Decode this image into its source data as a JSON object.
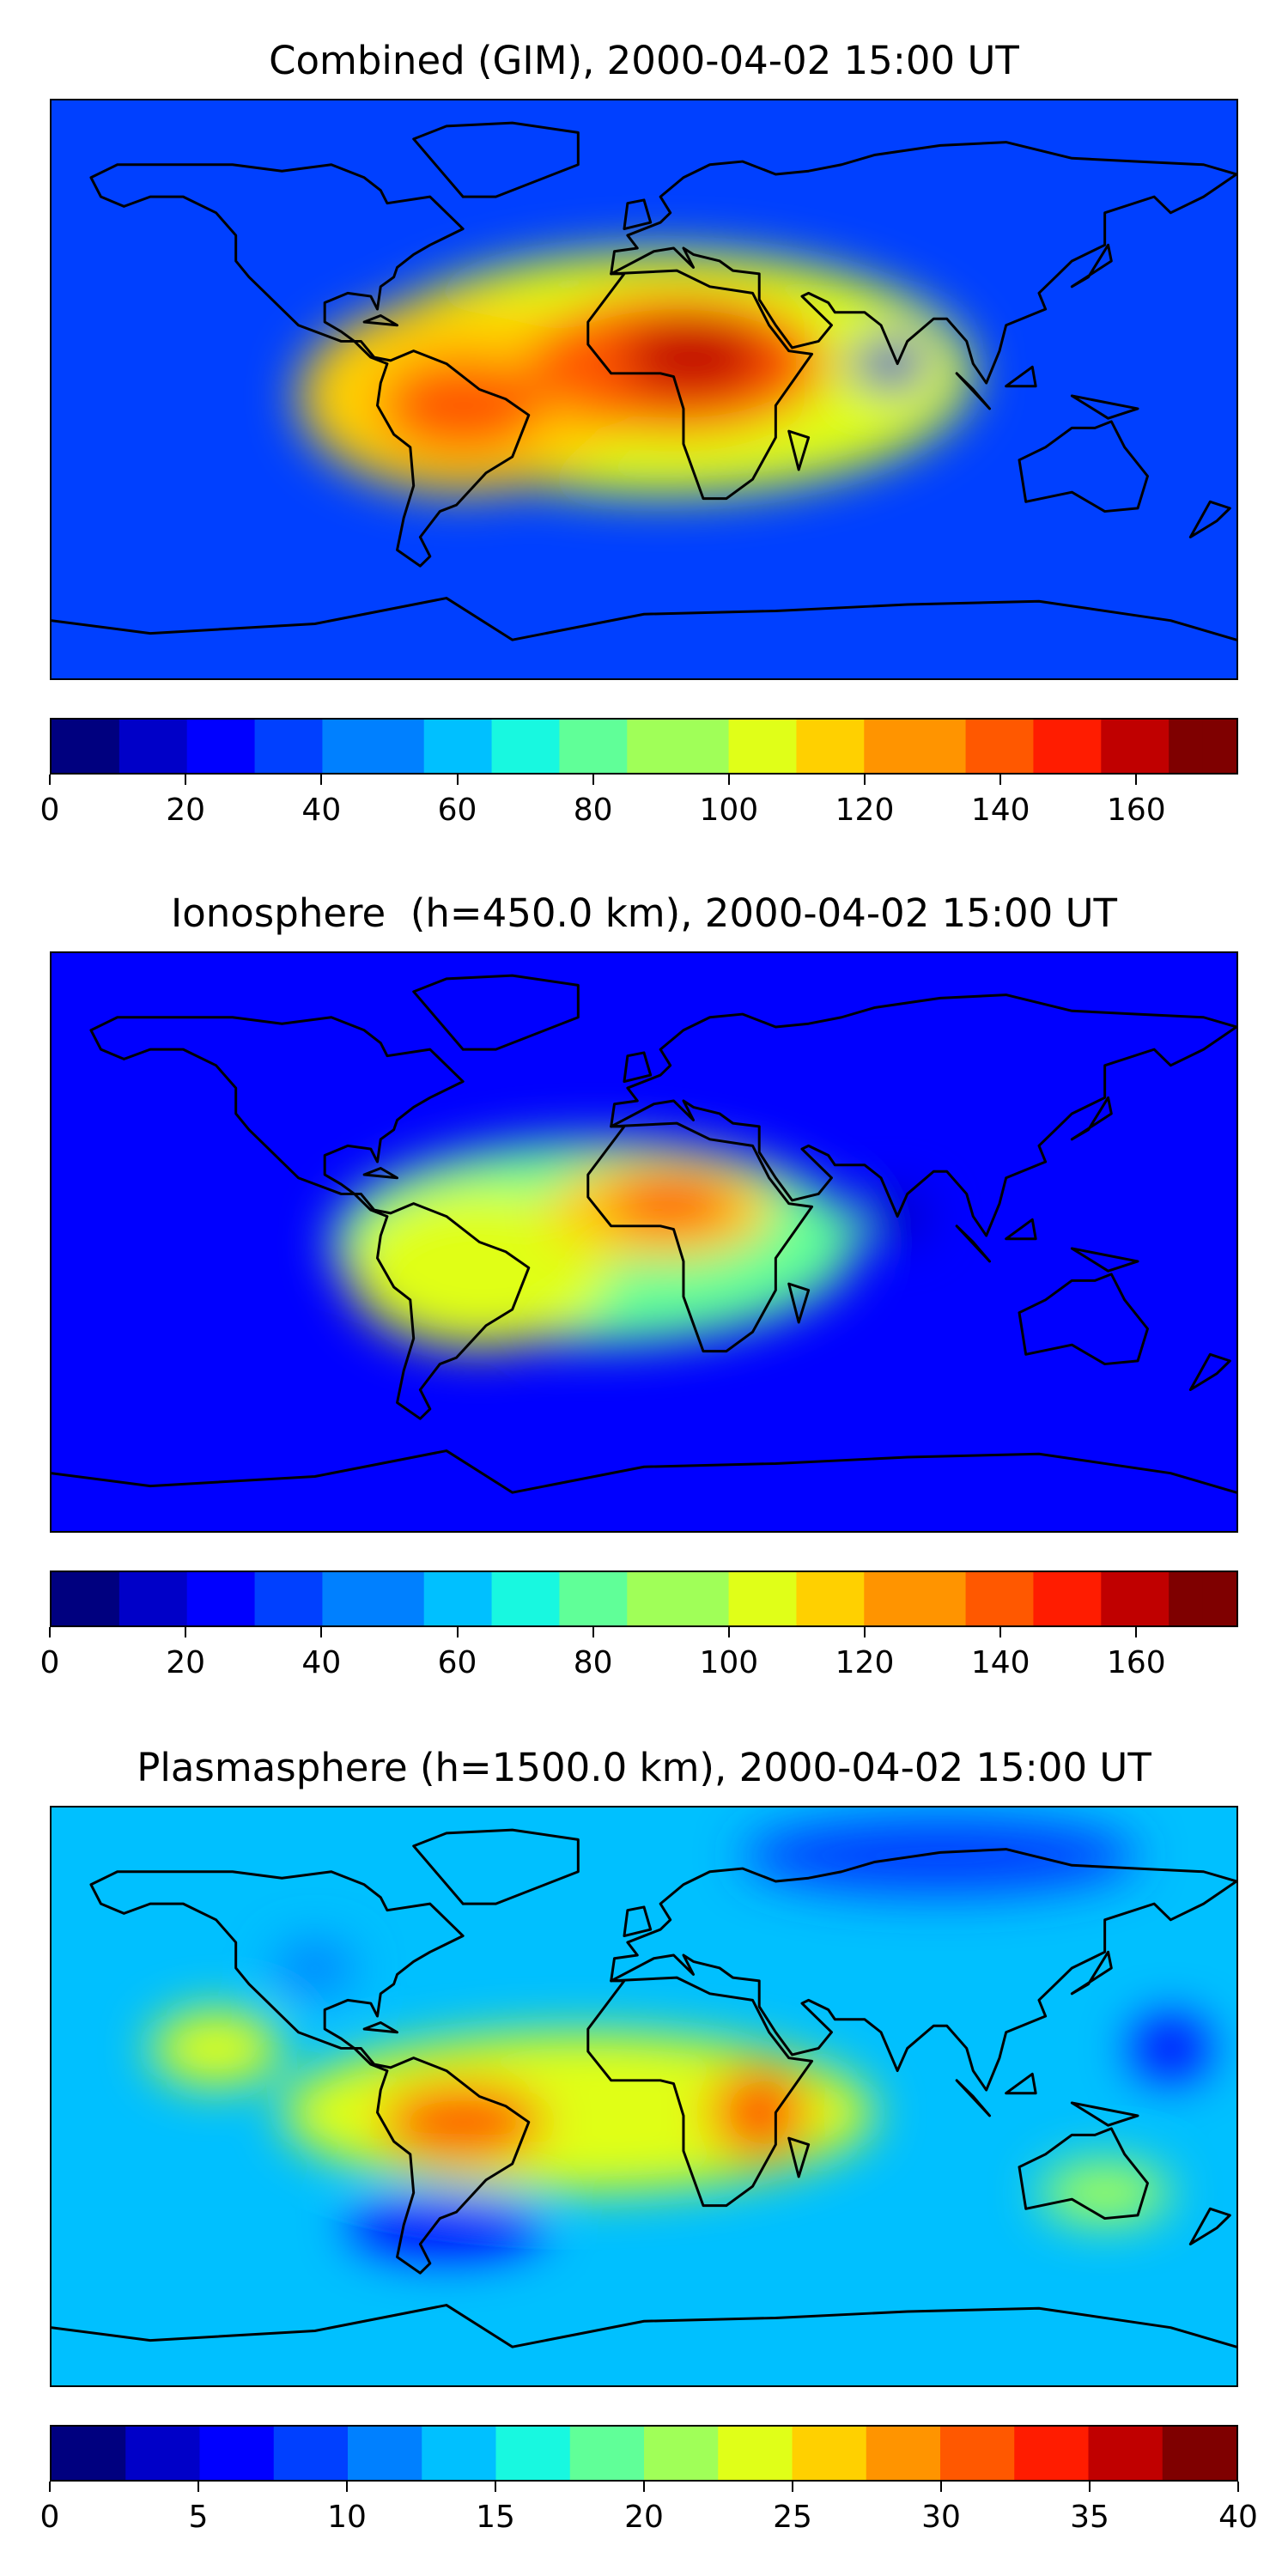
{
  "colors": {
    "jet": [
      "#00007f",
      "#0000c8",
      "#0000ff",
      "#0040ff",
      "#0080ff",
      "#00c0ff",
      "#18f8e0",
      "#60ff98",
      "#a0ff58",
      "#e0ff18",
      "#ffd000",
      "#ff9400",
      "#ff5800",
      "#ff1c00",
      "#c00000",
      "#7f0000"
    ],
    "coastline": "#000000"
  },
  "panels": [
    {
      "title": "Combined (GIM), 2000-04-02 15:00 UT",
      "background_level": 0.17,
      "colorbar": {
        "levels": 35,
        "tick_labels": [
          "0",
          "20",
          "40",
          "60",
          "80",
          "100",
          "120",
          "140",
          "160"
        ],
        "tick_values": [
          0,
          20,
          40,
          60,
          80,
          100,
          120,
          140,
          160
        ],
        "max": 175
      },
      "blobs": [
        {
          "lon": 5,
          "lat": 5,
          "rx": 95,
          "ry": 38,
          "level": 0.58
        },
        {
          "lon": -55,
          "lat": -2,
          "rx": 50,
          "ry": 30,
          "level": 0.67
        },
        {
          "lon": 10,
          "lat": 8,
          "rx": 45,
          "ry": 22,
          "level": 0.8
        },
        {
          "lon": 15,
          "lat": 10,
          "rx": 22,
          "ry": 12,
          "level": 0.94
        },
        {
          "lon": -55,
          "lat": -5,
          "rx": 25,
          "ry": 15,
          "level": 0.8
        },
        {
          "lon": 75,
          "lat": 8,
          "rx": 12,
          "ry": 8,
          "level": 0.08
        }
      ]
    },
    {
      "title": "Ionosphere  (h=450.0 km), 2000-04-02 15:00 UT",
      "background_level": 0.13,
      "colorbar": {
        "levels": 35,
        "tick_labels": [
          "0",
          "20",
          "40",
          "60",
          "80",
          "100",
          "120",
          "140",
          "160"
        ],
        "tick_values": [
          0,
          20,
          40,
          60,
          80,
          100,
          120,
          140,
          160
        ],
        "max": 175
      },
      "blobs": [
        {
          "lon": -15,
          "lat": 0,
          "rx": 80,
          "ry": 32,
          "level": 0.45
        },
        {
          "lon": -50,
          "lat": -8,
          "rx": 40,
          "ry": 25,
          "level": 0.58
        },
        {
          "lon": 5,
          "lat": 10,
          "rx": 35,
          "ry": 16,
          "level": 0.66
        },
        {
          "lon": 8,
          "lat": 12,
          "rx": 20,
          "ry": 9,
          "level": 0.82
        },
        {
          "lon": 75,
          "lat": 8,
          "rx": 12,
          "ry": 8,
          "level": 0.07
        }
      ]
    },
    {
      "title": "Plasmasphere (h=1500.0 km), 2000-04-02 15:00 UT",
      "background_level": 0.36,
      "colorbar": {
        "levels": 16,
        "tick_labels": [
          "0",
          "5",
          "10",
          "15",
          "20",
          "25",
          "30",
          "35",
          "40"
        ],
        "tick_values": [
          0,
          5,
          10,
          15,
          20,
          25,
          30,
          35,
          40
        ],
        "max": 40
      },
      "blobs": [
        {
          "lon": -20,
          "lat": -5,
          "rx": 90,
          "ry": 25,
          "level": 0.58
        },
        {
          "lon": -55,
          "lat": -8,
          "rx": 25,
          "ry": 12,
          "level": 0.78
        },
        {
          "lon": 35,
          "lat": -5,
          "rx": 15,
          "ry": 14,
          "level": 0.82
        },
        {
          "lon": -130,
          "lat": 15,
          "rx": 20,
          "ry": 12,
          "level": 0.58
        },
        {
          "lon": 160,
          "lat": 15,
          "rx": 12,
          "ry": 10,
          "level": 0.15
        },
        {
          "lon": -60,
          "lat": -40,
          "rx": 30,
          "ry": 10,
          "level": 0.13
        },
        {
          "lon": 90,
          "lat": 75,
          "rx": 60,
          "ry": 12,
          "level": 0.2
        },
        {
          "lon": -100,
          "lat": 40,
          "rx": 12,
          "ry": 8,
          "level": 0.25
        },
        {
          "lon": 140,
          "lat": -30,
          "rx": 20,
          "ry": 10,
          "level": 0.5
        }
      ]
    }
  ]
}
